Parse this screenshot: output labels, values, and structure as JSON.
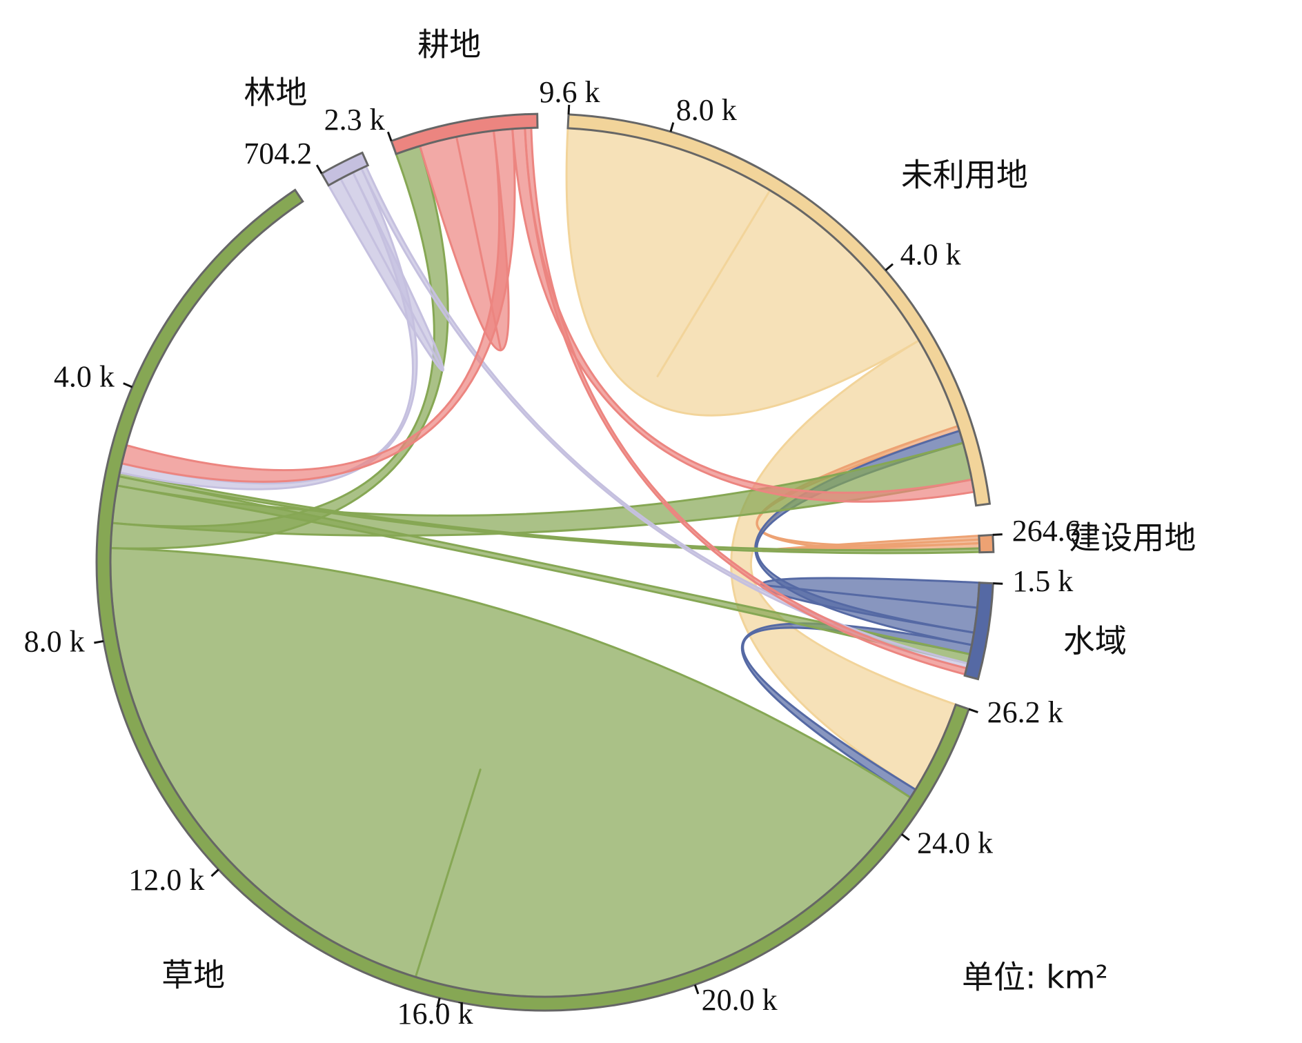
{
  "chart_data": {
    "type": "chord",
    "unit_label": "单位: km²",
    "groups": [
      {
        "name": "未利用地",
        "color": "#f2d49a",
        "value": 9600,
        "ticks": [
          {
            "value": 4000,
            "label": "4.0 k"
          },
          {
            "value": 8000,
            "label": "8.0 k"
          },
          {
            "value": 9600,
            "label": "9.6 k"
          }
        ]
      },
      {
        "name": "建设用地",
        "color": "#eda273",
        "value": 264.6,
        "ticks": [
          {
            "value": 264.6,
            "label": "264.6"
          }
        ]
      },
      {
        "name": "水域",
        "color": "#5569a4",
        "value": 1500,
        "ticks": [
          {
            "value": 1500,
            "label": "1.5 k"
          }
        ]
      },
      {
        "name": "草地",
        "color": "#86a754",
        "value": 26200,
        "ticks": [
          {
            "value": 4000,
            "label": "4.0 k"
          },
          {
            "value": 8000,
            "label": "8.0 k"
          },
          {
            "value": 12000,
            "label": "12.0 k"
          },
          {
            "value": 16000,
            "label": "16.0 k"
          },
          {
            "value": 20000,
            "label": "20.0 k"
          },
          {
            "value": 24000,
            "label": "24.0 k"
          },
          {
            "value": 26200,
            "label": "26.2 k"
          }
        ]
      },
      {
        "name": "林地",
        "color": "#c5c0df",
        "value": 704.2,
        "ticks": [
          {
            "value": 704.2,
            "label": "704.2"
          }
        ]
      },
      {
        "name": "耕地",
        "color": "#ec8580",
        "value": 2300,
        "ticks": [
          {
            "value": 2300,
            "label": "2.3 k"
          }
        ]
      }
    ],
    "flows": [
      {
        "source": "未利用地",
        "target": "未利用地",
        "value": 3400
      },
      {
        "source": "未利用地",
        "target": "草地",
        "value": 1500
      },
      {
        "source": "建设用地",
        "target": "建设用地",
        "value": 60
      },
      {
        "source": "建设用地",
        "target": "未利用地",
        "value": 80
      },
      {
        "source": "水域",
        "target": "水域",
        "value": 400
      },
      {
        "source": "水域",
        "target": "未利用地",
        "value": 200
      },
      {
        "source": "水域",
        "target": "草地",
        "value": 150
      },
      {
        "source": "草地",
        "target": "草地",
        "value": 9000
      },
      {
        "source": "草地",
        "target": "耕地",
        "value": 400
      },
      {
        "source": "草地",
        "target": "未利用地",
        "value": 600
      },
      {
        "source": "草地",
        "target": "水域",
        "value": 150
      },
      {
        "source": "草地",
        "target": "建设用地",
        "value": 60
      },
      {
        "source": "林地",
        "target": "林地",
        "value": 220
      },
      {
        "source": "林地",
        "target": "草地",
        "value": 150
      },
      {
        "source": "林地",
        "target": "水域",
        "value": 80
      },
      {
        "source": "耕地",
        "target": "耕地",
        "value": 600
      },
      {
        "source": "耕地",
        "target": "草地",
        "value": 300
      },
      {
        "source": "耕地",
        "target": "未利用地",
        "value": 200
      },
      {
        "source": "耕地",
        "target": "水域",
        "value": 100
      }
    ]
  }
}
